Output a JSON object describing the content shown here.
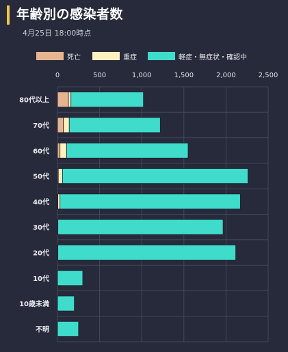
{
  "header": {
    "title": "年齢別の感染者数",
    "subtitle": "4月25日 18:00時点"
  },
  "colors": {
    "background": "#262a3a",
    "accent": "#f2c744",
    "grid": "#43485a",
    "death": "#e8b490",
    "severe": "#fff0c0",
    "mild": "#3fdccb",
    "bar_stroke": "#1d2030"
  },
  "chart_data": {
    "type": "bar",
    "orientation": "horizontal",
    "stacked": true,
    "title": "",
    "xlabel": "",
    "ylabel": "",
    "xlim": [
      0,
      2500
    ],
    "x_ticks": [
      "0",
      "500",
      "1,000",
      "1,500",
      "2,000",
      "2,500"
    ],
    "x_tick_values": [
      0,
      500,
      1000,
      1500,
      2000,
      2500
    ],
    "grid": true,
    "legend_position": "top",
    "categories": [
      "80代以上",
      "70代",
      "60代",
      "50代",
      "40代",
      "30代",
      "20代",
      "10代",
      "10歳未満",
      "不明"
    ],
    "series": [
      {
        "name": "死亡",
        "color": "#e8b490",
        "values": [
          130,
          70,
          30,
          10,
          5,
          0,
          0,
          0,
          0,
          0
        ]
      },
      {
        "name": "重症",
        "color": "#fff0c0",
        "values": [
          30,
          70,
          80,
          50,
          25,
          5,
          5,
          0,
          0,
          0
        ]
      },
      {
        "name": "軽症・無症状・確認中",
        "color": "#3fdccb",
        "values": [
          860,
          1080,
          1440,
          2200,
          2140,
          1960,
          2110,
          300,
          200,
          250
        ]
      }
    ]
  }
}
